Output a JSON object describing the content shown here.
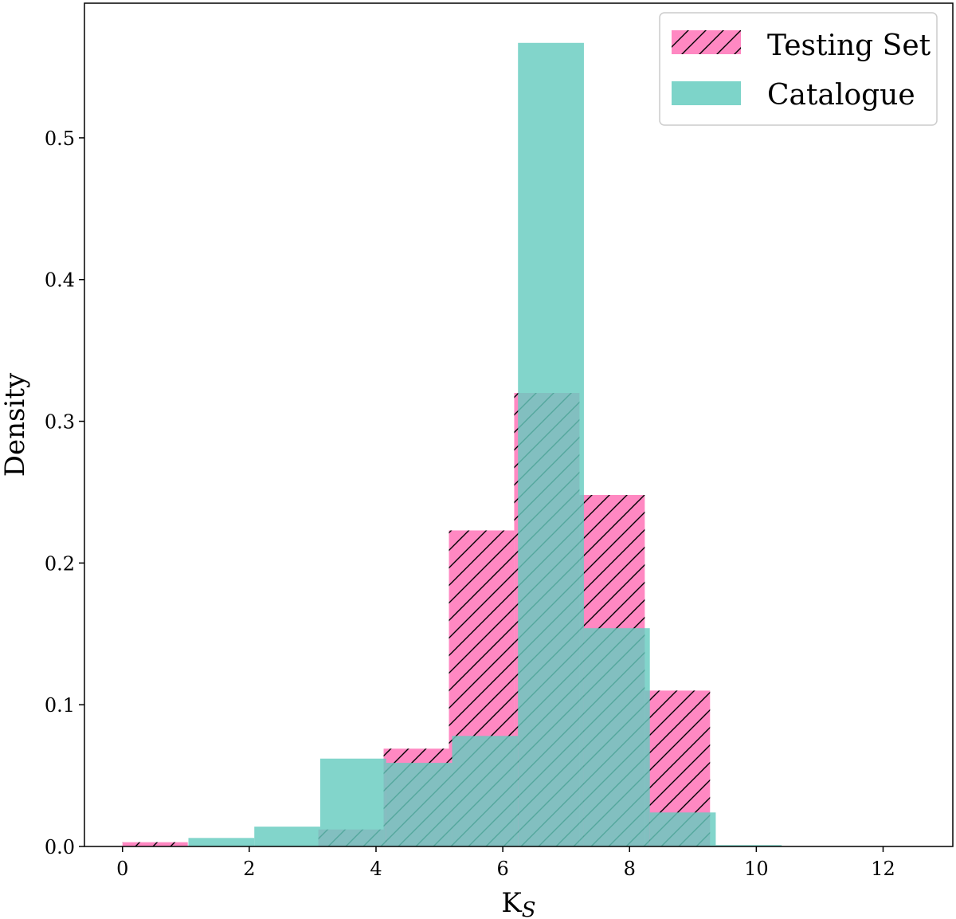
{
  "chart_data": {
    "type": "histogram",
    "title": "",
    "xlabel": "KS",
    "ylabel": "Density",
    "xlim": [
      -0.6,
      13.1
    ],
    "ylim": [
      0,
      0.595
    ],
    "xticks": [
      0,
      2,
      4,
      6,
      8,
      10,
      12
    ],
    "yticks": [
      0.0,
      0.1,
      0.2,
      0.3,
      0.4,
      0.5
    ],
    "grid": false,
    "legend_position": "top-right",
    "series": [
      {
        "name": "Testing Set",
        "color": "#ff88c2",
        "hatch": "diagonal",
        "hatch_color": "#000000",
        "bins": [
          {
            "x0": 0.0,
            "x1": 1.03,
            "value": 0.003
          },
          {
            "x0": 1.03,
            "x1": 2.06,
            "value": 0.0
          },
          {
            "x0": 2.06,
            "x1": 3.09,
            "value": 0.0
          },
          {
            "x0": 3.09,
            "x1": 4.12,
            "value": 0.012
          },
          {
            "x0": 4.12,
            "x1": 5.15,
            "value": 0.069
          },
          {
            "x0": 5.15,
            "x1": 6.18,
            "value": 0.223
          },
          {
            "x0": 6.18,
            "x1": 7.21,
            "value": 0.32
          },
          {
            "x0": 7.21,
            "x1": 8.24,
            "value": 0.248
          },
          {
            "x0": 8.24,
            "x1": 9.27,
            "value": 0.11
          }
        ]
      },
      {
        "name": "Catalogue",
        "color": "#66ccbf",
        "hatch": "none",
        "bins": [
          {
            "x0": 1.04,
            "x1": 2.08,
            "value": 0.006
          },
          {
            "x0": 2.08,
            "x1": 3.12,
            "value": 0.014
          },
          {
            "x0": 3.12,
            "x1": 4.16,
            "value": 0.062
          },
          {
            "x0": 4.16,
            "x1": 5.2,
            "value": 0.059
          },
          {
            "x0": 5.2,
            "x1": 6.24,
            "value": 0.078
          },
          {
            "x0": 6.24,
            "x1": 7.28,
            "value": 0.567
          },
          {
            "x0": 7.28,
            "x1": 8.32,
            "value": 0.154
          },
          {
            "x0": 8.32,
            "x1": 9.36,
            "value": 0.024
          },
          {
            "x0": 9.36,
            "x1": 10.4,
            "value": 0.001
          }
        ]
      }
    ]
  }
}
